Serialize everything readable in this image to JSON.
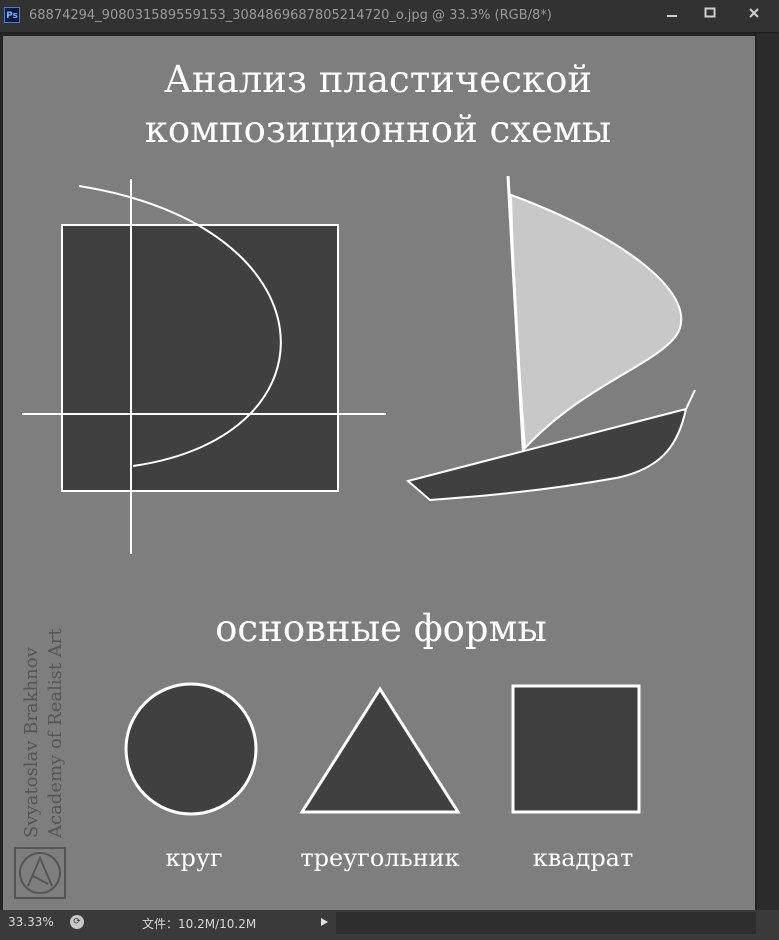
{
  "window": {
    "app_icon": "Ps",
    "title": "68874294_908031589559153_3084869687805214720_o.jpg @ 33.3% (RGB/8*)",
    "icons": [
      "minimize-icon",
      "maximize-icon",
      "close-icon"
    ]
  },
  "artwork": {
    "title_line1": "Анализ пластической",
    "title_line2": "композиционной схемы",
    "subtitle": "основные формы",
    "shapes": [
      {
        "label": "круг"
      },
      {
        "label": "треугольник"
      },
      {
        "label": "квадрат"
      }
    ],
    "signature_line1": "Svyatoslav  Brakhnov",
    "signature_line2": "Academy of Realist Art",
    "colors": {
      "canvas": "#7e7e7e",
      "dark_fill": "#404040",
      "light_fill": "#c8c8c8",
      "stroke": "#ffffff"
    }
  },
  "status": {
    "zoom": "33.33%",
    "file_info": "文件：10.2M/10.2M"
  }
}
